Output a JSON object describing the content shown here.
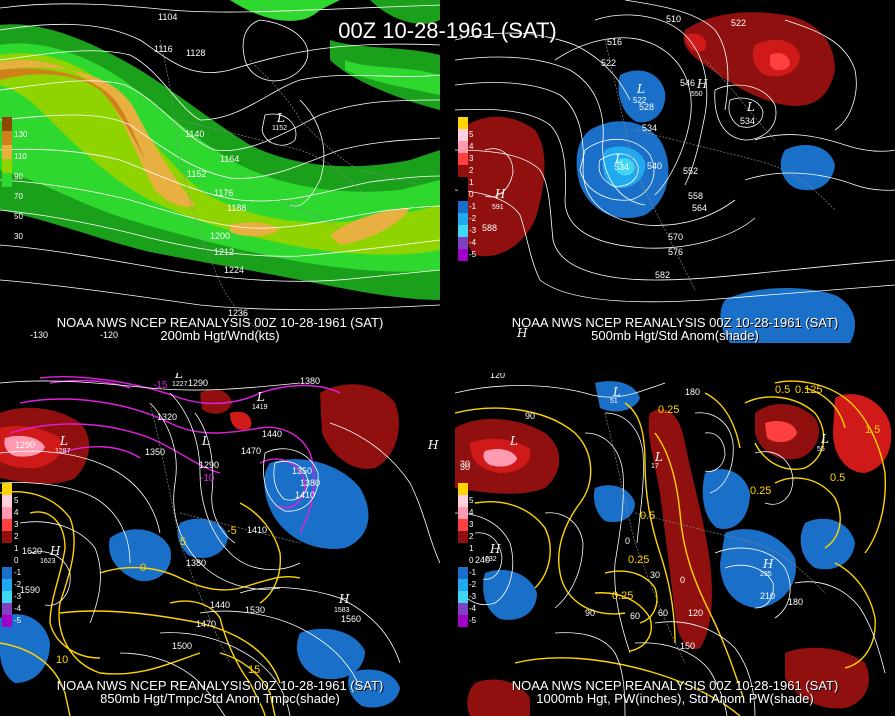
{
  "title": "00Z 10-28-1961 (SAT)",
  "panels": [
    {
      "id": "p200",
      "caption1": "NOAA NWS NCEP REANALYSIS 00Z 10-28-1961 (SAT)",
      "caption2": "200mb Hgt/Wnd(kts)",
      "colorbar": [
        "130",
        "110",
        "90",
        "70",
        "50",
        "30"
      ],
      "contour_labels": [
        "1104",
        "1116",
        "1128",
        "1140",
        "1152",
        "1164",
        "1176",
        "1188",
        "1200",
        "1212",
        "1224",
        "1236"
      ],
      "lows": [
        {
          "label": "L",
          "value": "1152"
        }
      ],
      "lon_labels": [
        "-130",
        "-120"
      ]
    },
    {
      "id": "p500",
      "caption1": "NOAA NWS NCEP REANALYSIS 00Z 10-28-1961 (SAT)",
      "caption2": "500mb Hgt/Std Anom(shade)",
      "colorbar": [
        "5",
        "4",
        "3",
        "2",
        "1",
        "0",
        "-1",
        "-2",
        "-3",
        "-4",
        "-5"
      ],
      "contour_labels": [
        "510",
        "516",
        "522",
        "522",
        "528",
        "534",
        "540",
        "546",
        "552",
        "558",
        "564",
        "570",
        "576",
        "582",
        "588",
        "534",
        "534",
        "540",
        "550"
      ],
      "highs": [
        {
          "label": "H",
          "value": "591"
        },
        {
          "label": "H",
          "value": "550"
        },
        {
          "label": "H",
          "value": ""
        }
      ],
      "lows": [
        {
          "label": "L",
          "value": "522"
        },
        {
          "label": "L",
          "value": "534"
        },
        {
          "label": "L",
          "value": "528"
        }
      ]
    },
    {
      "id": "p850",
      "caption1": "NOAA NWS NCEP REANALYSIS 00Z 10-28-1961 (SAT)",
      "caption2": "850mb Hgt/Tmpc/Std Anom Tmpc(shade)",
      "colorbar": [
        "5",
        "4",
        "3",
        "2",
        "1",
        "0",
        "-1",
        "-2",
        "-3",
        "-4",
        "-5"
      ],
      "contour_labels": [
        "1290",
        "1290",
        "1380",
        "1320",
        "1350",
        "1290",
        "1440",
        "1470",
        "1350",
        "1380",
        "1410",
        "1410",
        "1380",
        "1440",
        "1470",
        "1530",
        "1500",
        "1560",
        "1590",
        "1620"
      ],
      "temp_labels": [
        "-15",
        "-10",
        "-5",
        "0",
        "5",
        "10",
        "15"
      ],
      "highs": [
        {
          "label": "H",
          "value": "1623"
        },
        {
          "label": "H",
          "value": "1583"
        },
        {
          "label": "H",
          "value": ""
        }
      ],
      "lows": [
        {
          "label": "L",
          "value": "1287"
        },
        {
          "label": "L",
          "value": "1227"
        },
        {
          "label": "L",
          "value": "1419"
        },
        {
          "label": "L",
          "value": ""
        }
      ]
    },
    {
      "id": "p1000",
      "caption1": "NOAA NWS NCEP REANALYSIS 00Z 10-28-1961 (SAT)",
      "caption2": "1000mb Hgt, PW(inches), Std Anom PW(shade)",
      "colorbar": [
        "5",
        "4",
        "3",
        "2",
        "1",
        "0",
        "-1",
        "-2",
        "-3",
        "-4",
        "-5"
      ],
      "contour_labels": [
        "120",
        "180",
        "90",
        "30",
        "0",
        "30",
        "0",
        "60",
        "120",
        "150",
        "90",
        "60",
        "180",
        "210",
        "240",
        "30",
        "0.25",
        "0.25",
        "0.5",
        "0.25",
        "0.5",
        "1.5",
        "0.125",
        "0.5",
        "0.25"
      ],
      "highs": [
        {
          "label": "H",
          "value": "232"
        },
        {
          "label": "H",
          "value": "235"
        }
      ],
      "lows": [
        {
          "label": "L",
          "value": "51"
        },
        {
          "label": "L",
          "value": "17"
        },
        {
          "label": "L",
          "value": "30"
        },
        {
          "label": "L",
          "value": "55"
        }
      ]
    }
  ],
  "colors": {
    "wind": [
      "#8b4a00",
      "#d0821a",
      "#e8b040",
      "#8fd400",
      "#2fd82f",
      "#1aa01a"
    ],
    "anom_pos": [
      "#ffd0e0",
      "#ff9ab0",
      "#ff4040",
      "#d01a1a",
      "#901010"
    ],
    "anom_neg": [
      "#1a70c8",
      "#20a8f0",
      "#40d8f0",
      "#8040c0",
      "#a000c8"
    ],
    "contour": "#ffffff",
    "pw": "#ffd400",
    "temp": "#e020e0"
  }
}
